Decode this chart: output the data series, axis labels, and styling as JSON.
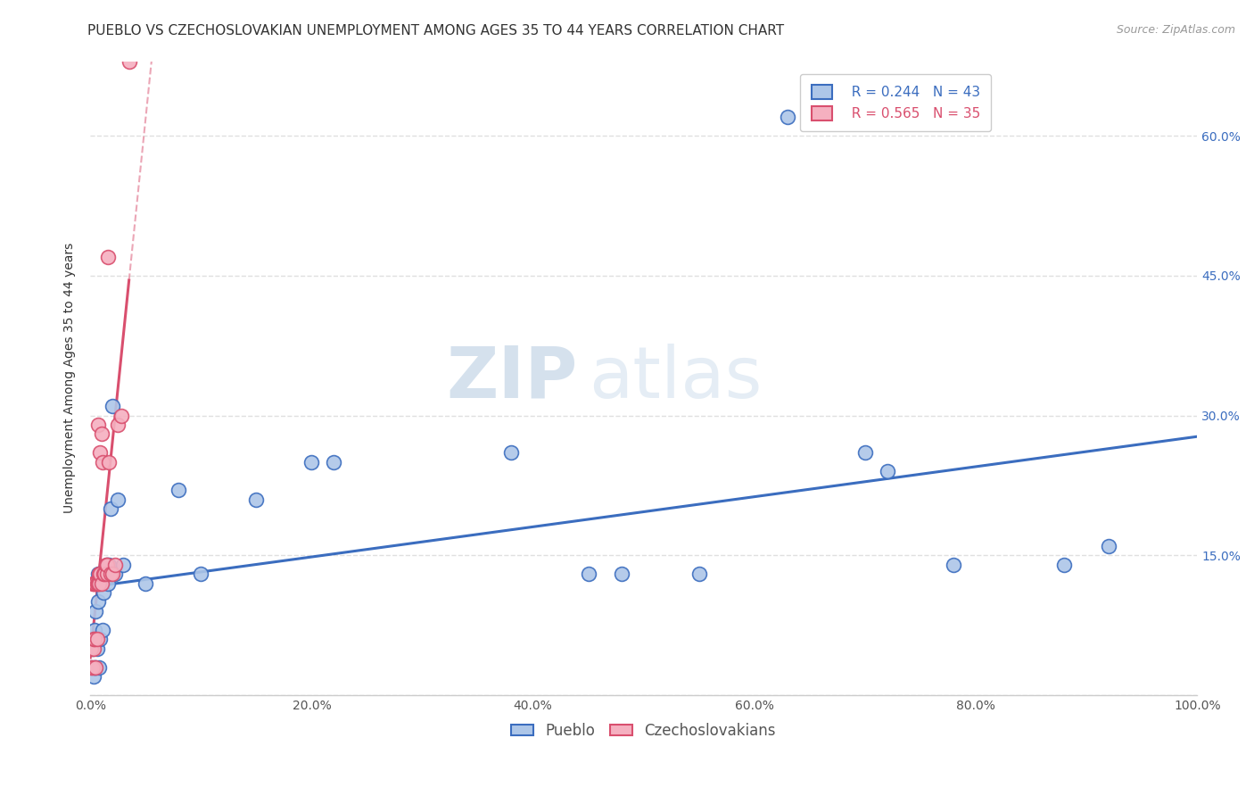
{
  "title": "PUEBLO VS CZECHOSLOVAKIAN UNEMPLOYMENT AMONG AGES 35 TO 44 YEARS CORRELATION CHART",
  "source": "Source: ZipAtlas.com",
  "ylabel": "Unemployment Among Ages 35 to 44 years",
  "pueblo_R": "0.244",
  "pueblo_N": "43",
  "czech_R": "0.565",
  "czech_N": "35",
  "pueblo_color": "#adc6e8",
  "czech_color": "#f5b0c0",
  "pueblo_line_color": "#3b6dbf",
  "czech_line_color": "#d94f6e",
  "pueblo_x": [
    0.001,
    0.002,
    0.003,
    0.003,
    0.004,
    0.004,
    0.005,
    0.005,
    0.006,
    0.007,
    0.007,
    0.008,
    0.008,
    0.009,
    0.01,
    0.011,
    0.012,
    0.013,
    0.014,
    0.015,
    0.016,
    0.017,
    0.018,
    0.02,
    0.022,
    0.025,
    0.03,
    0.05,
    0.08,
    0.1,
    0.15,
    0.2,
    0.22,
    0.38,
    0.45,
    0.48,
    0.55,
    0.63,
    0.7,
    0.72,
    0.78,
    0.88,
    0.92
  ],
  "pueblo_y": [
    0.03,
    0.05,
    0.02,
    0.06,
    0.03,
    0.07,
    0.03,
    0.09,
    0.05,
    0.1,
    0.13,
    0.03,
    0.12,
    0.06,
    0.12,
    0.07,
    0.11,
    0.13,
    0.13,
    0.14,
    0.12,
    0.14,
    0.2,
    0.31,
    0.13,
    0.21,
    0.14,
    0.12,
    0.22,
    0.13,
    0.21,
    0.25,
    0.25,
    0.26,
    0.13,
    0.13,
    0.13,
    0.62,
    0.26,
    0.24,
    0.14,
    0.14,
    0.16
  ],
  "czech_x": [
    0.001,
    0.001,
    0.002,
    0.002,
    0.003,
    0.003,
    0.003,
    0.004,
    0.004,
    0.005,
    0.005,
    0.006,
    0.006,
    0.007,
    0.007,
    0.008,
    0.008,
    0.009,
    0.009,
    0.01,
    0.01,
    0.011,
    0.012,
    0.013,
    0.014,
    0.015,
    0.015,
    0.016,
    0.017,
    0.018,
    0.02,
    0.022,
    0.025,
    0.028,
    0.035
  ],
  "czech_y": [
    0.03,
    0.05,
    0.03,
    0.12,
    0.05,
    0.06,
    0.12,
    0.06,
    0.12,
    0.03,
    0.12,
    0.06,
    0.12,
    0.12,
    0.29,
    0.12,
    0.13,
    0.13,
    0.26,
    0.12,
    0.28,
    0.25,
    0.13,
    0.13,
    0.14,
    0.13,
    0.14,
    0.47,
    0.25,
    0.13,
    0.13,
    0.14,
    0.29,
    0.3,
    0.68
  ],
  "xlim": [
    0.0,
    1.0
  ],
  "ylim": [
    0.0,
    0.68
  ],
  "xtick_vals": [
    0.0,
    0.2,
    0.4,
    0.6,
    0.8,
    1.0
  ],
  "xtick_labels": [
    "0.0%",
    "20.0%",
    "40.0%",
    "60.0%",
    "80.0%",
    "100.0%"
  ],
  "ytick_vals": [
    0.0,
    0.15,
    0.3,
    0.45,
    0.6
  ],
  "ytick_right_labels": [
    "",
    "15.0%",
    "30.0%",
    "45.0%",
    "60.0%"
  ],
  "grid_color": "#e0e0e0",
  "bg_color": "#ffffff",
  "title_fontsize": 11,
  "label_fontsize": 10,
  "tick_fontsize": 10,
  "legend_fontsize": 11,
  "watermark_zip": "ZIP",
  "watermark_atlas": "atlas"
}
